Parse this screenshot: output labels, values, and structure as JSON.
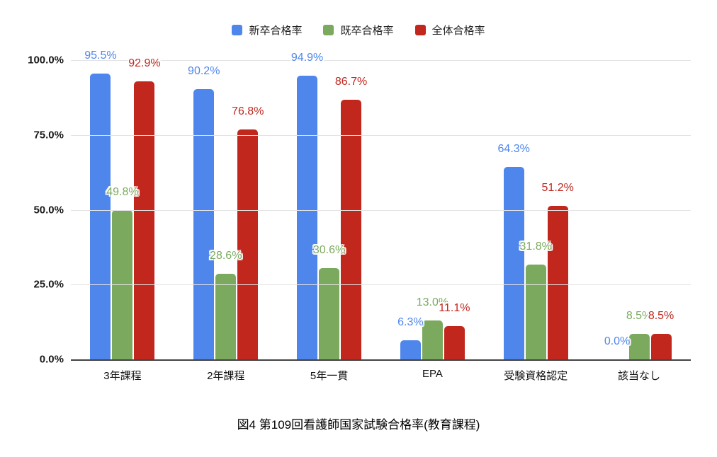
{
  "chart_data": {
    "type": "bar",
    "caption": "図4 第109回看護師国家試験合格率(教育課程)",
    "categories": [
      "3年課程",
      "2年課程",
      "5年一貫",
      "EPA",
      "受験資格認定",
      "該当なし"
    ],
    "series": [
      {
        "name": "新卒合格率",
        "color": "#4f86ec",
        "values": [
          95.5,
          90.2,
          94.9,
          6.3,
          64.3,
          0.0
        ]
      },
      {
        "name": "既卒合格率",
        "color": "#7baa5e",
        "values": [
          49.8,
          28.6,
          30.6,
          13.0,
          31.8,
          8.5
        ]
      },
      {
        "name": "全体合格率",
        "color": "#c1271d",
        "values": [
          92.9,
          76.8,
          86.7,
          11.1,
          51.2,
          8.5
        ]
      }
    ],
    "y_ticks": [
      {
        "value": 0,
        "label": "0.0%"
      },
      {
        "value": 25,
        "label": "25.0%"
      },
      {
        "value": 50,
        "label": "50.0%"
      },
      {
        "value": 75,
        "label": "75.0%"
      },
      {
        "value": 100,
        "label": "100.0%"
      }
    ],
    "ylim": [
      0,
      100
    ],
    "grid": true,
    "legend_position": "top",
    "value_suffix": "%"
  },
  "colors": {
    "grid": "#e3e3e3",
    "axis": "#424242",
    "background": "#ffffff"
  }
}
